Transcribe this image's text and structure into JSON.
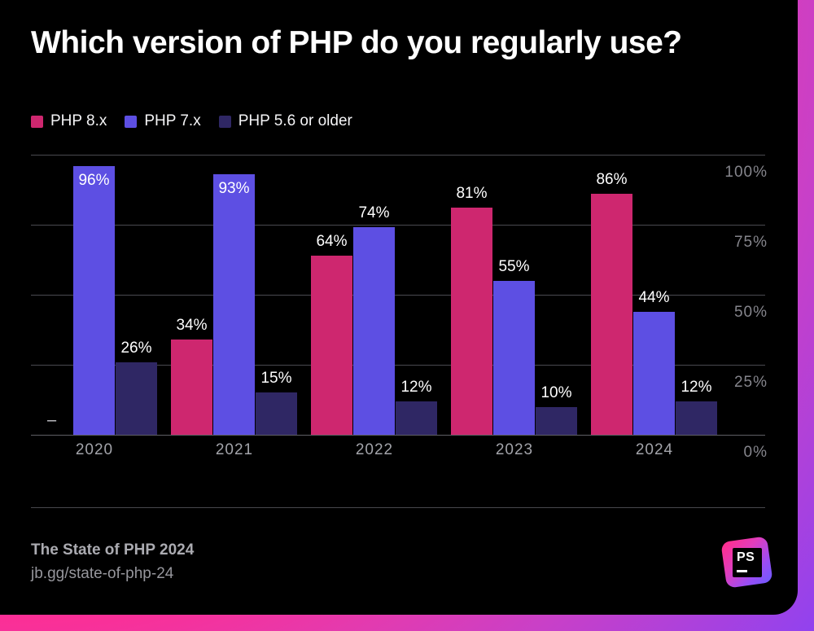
{
  "title": "Which version of PHP do you regularly use?",
  "chart_data": {
    "type": "bar",
    "categories": [
      "2020",
      "2021",
      "2022",
      "2023",
      "2024"
    ],
    "series": [
      {
        "name": "PHP 8.x",
        "color": "#ce276f",
        "values": [
          null,
          34,
          64,
          81,
          86
        ]
      },
      {
        "name": "PHP 7.x",
        "color": "#5d4fe3",
        "values": [
          96,
          93,
          74,
          55,
          44
        ]
      },
      {
        "name": "PHP 5.6 or older",
        "color": "#2f2764",
        "values": [
          26,
          15,
          12,
          10,
          12
        ]
      }
    ],
    "value_suffix": "%",
    "missing_marker": "–",
    "y_ticks": [
      100,
      75,
      50,
      25,
      0
    ],
    "ylim": [
      0,
      100
    ],
    "grid": true,
    "legend_position": "top-left",
    "value_labels": true,
    "axis_side": "right"
  },
  "footer": {
    "line1": "The State of PHP 2024",
    "line2": "jb.gg/state-of-php-24"
  },
  "logo": {
    "monogram": "PS"
  },
  "colors": {
    "card_background": "#000000",
    "gradient_pink": "#ff2d92",
    "gradient_magenta": "#c840c8",
    "gradient_violet": "#8f42f0",
    "gridline": "#4a4a50",
    "axis_text": "#85858c",
    "category_text": "#a2a3a9",
    "value_text": "#ffffff"
  }
}
